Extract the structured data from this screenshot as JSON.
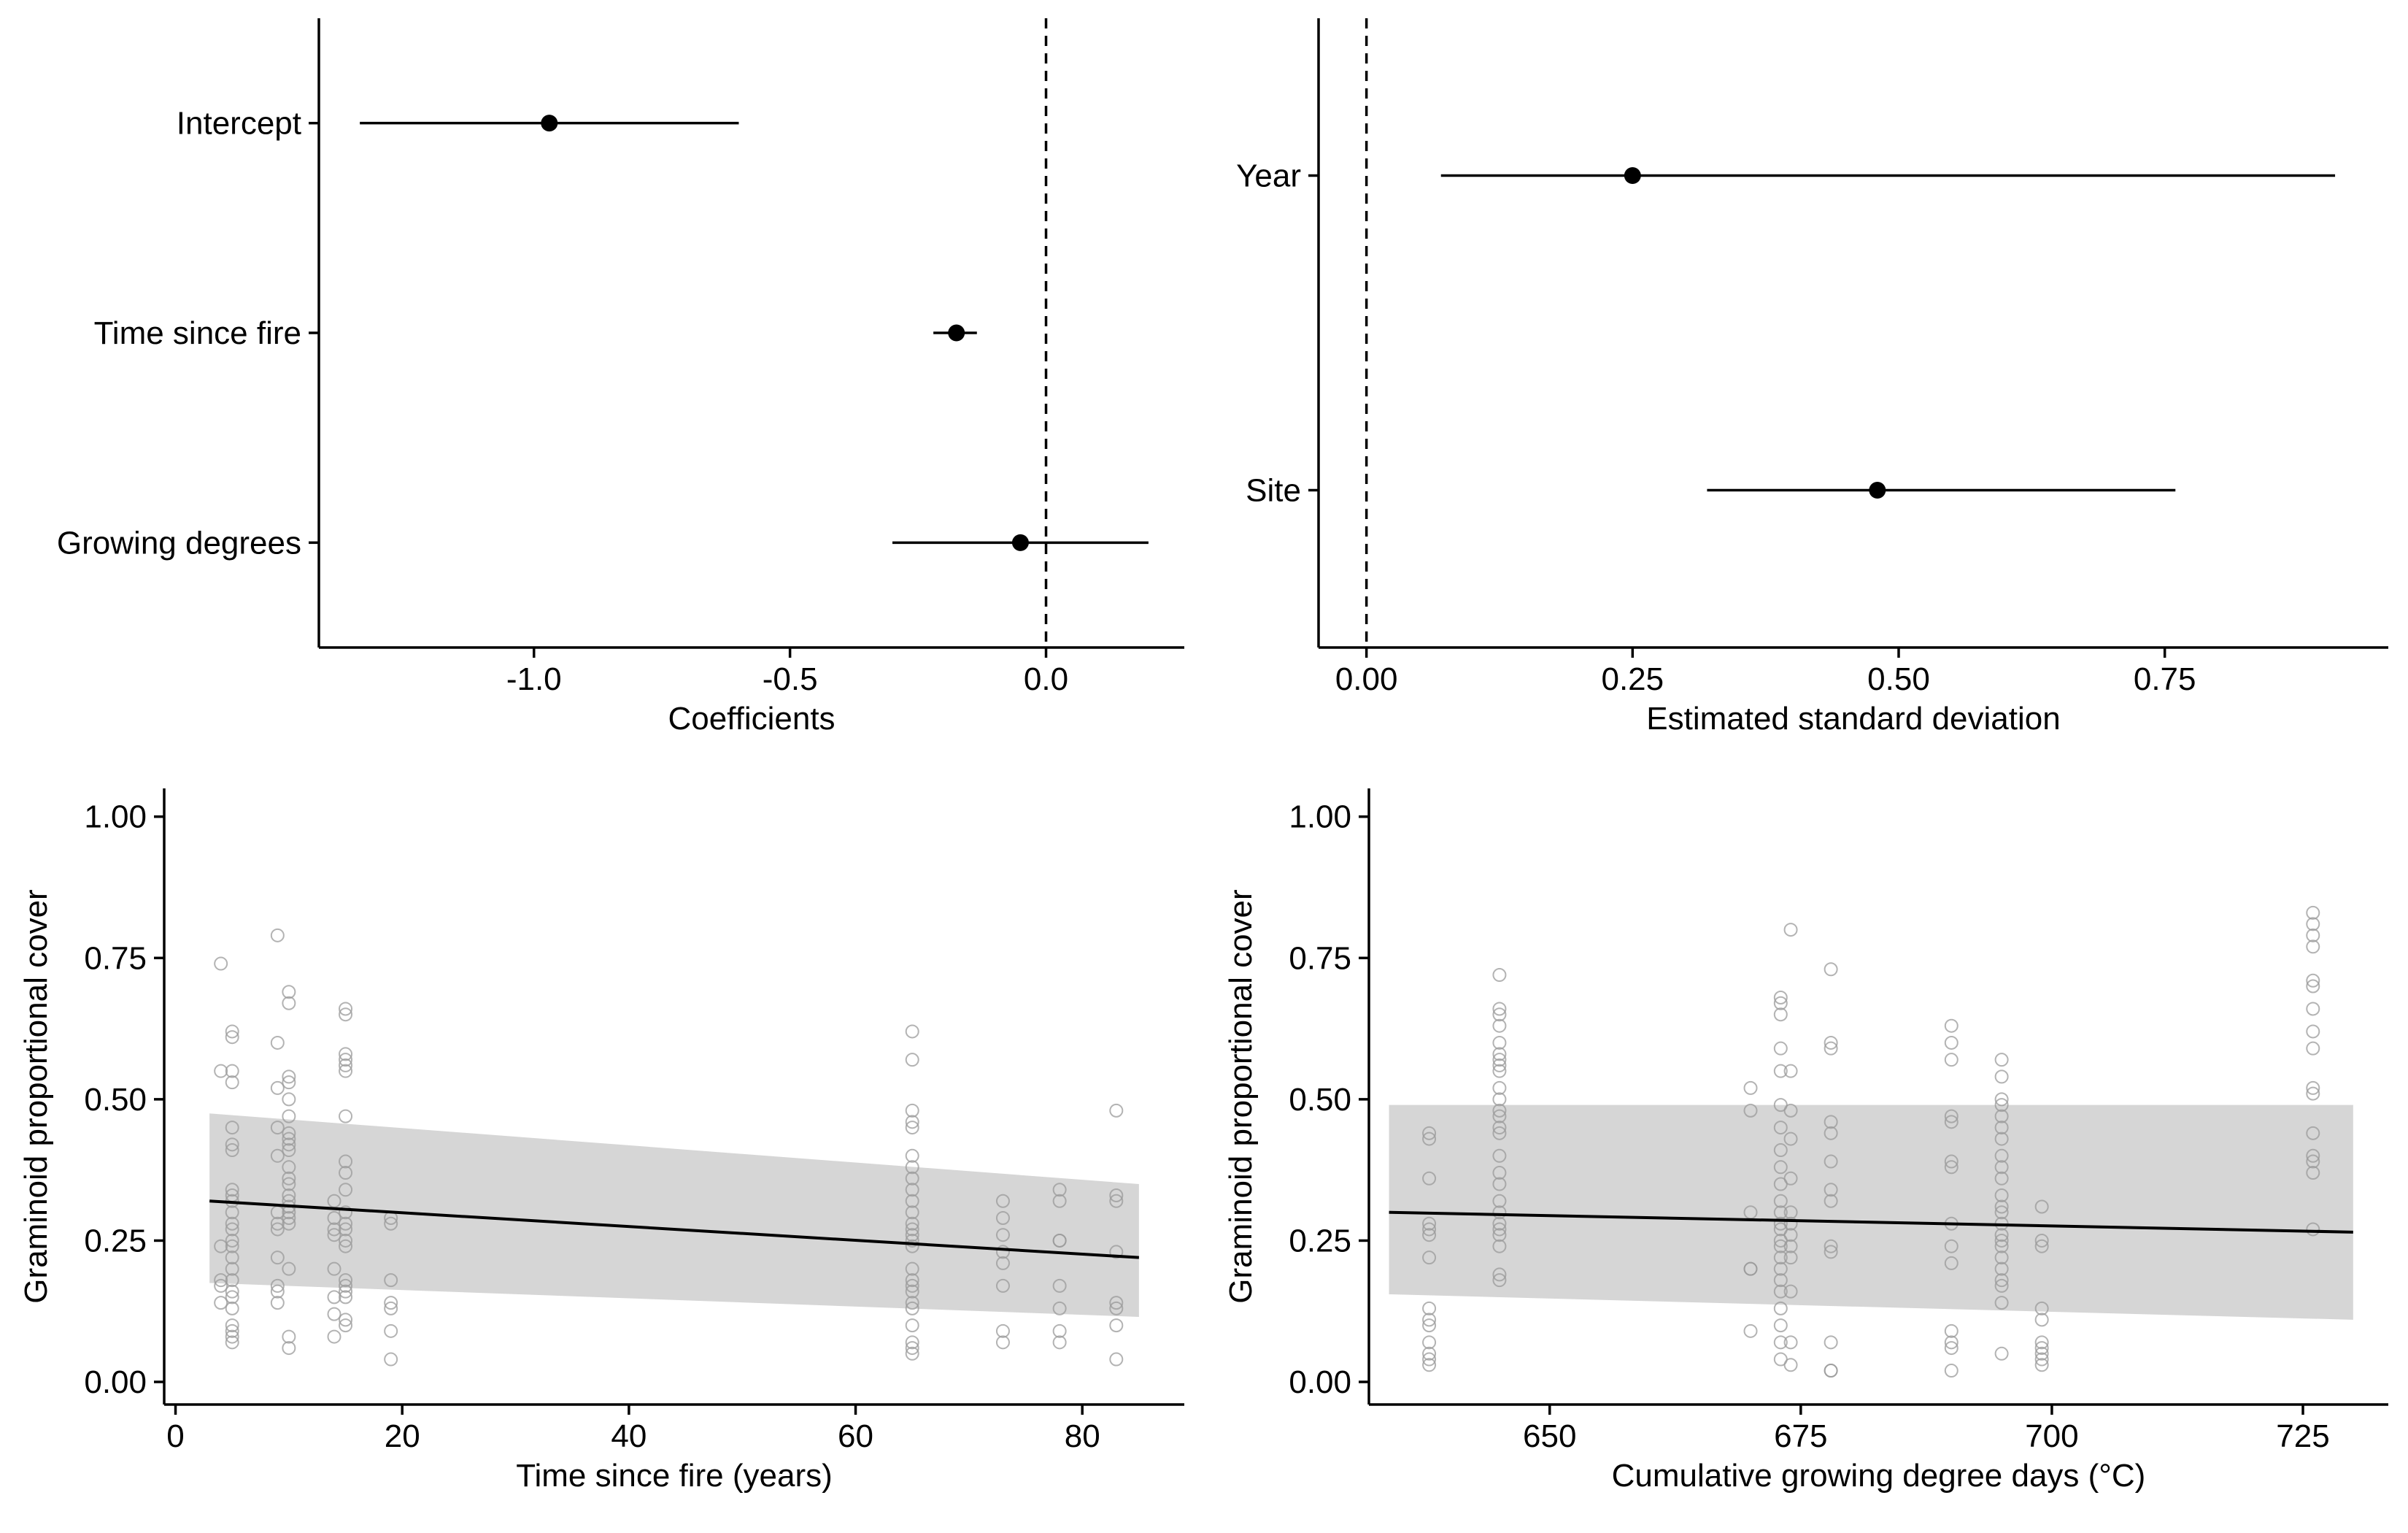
{
  "chart_data": [
    {
      "id": "coef",
      "type": "scatter",
      "subtype": "forest",
      "xlabel": "Coefficients",
      "ylabel": "",
      "xlim": [
        -1.42,
        0.27
      ],
      "xticks": [
        -1.0,
        -0.5,
        0.0
      ],
      "xtick_labels": [
        "-1.0",
        "-0.5",
        "0.0"
      ],
      "reference_line": 0.0,
      "categories": [
        "Intercept",
        "Time since fire",
        "Growing degrees"
      ],
      "estimates": [
        -0.97,
        -0.175,
        -0.05
      ],
      "lower": [
        -1.34,
        -0.22,
        -0.3
      ],
      "upper": [
        -0.6,
        -0.135,
        0.2
      ],
      "grid": false
    },
    {
      "id": "sd",
      "type": "scatter",
      "subtype": "forest",
      "xlabel": "Estimated standard deviation",
      "ylabel": "",
      "xlim": [
        -0.045,
        0.96
      ],
      "xticks": [
        0.0,
        0.25,
        0.5,
        0.75
      ],
      "xtick_labels": [
        "0.00",
        "0.25",
        "0.50",
        "0.75"
      ],
      "reference_line": 0.0,
      "categories": [
        "Year",
        "Site"
      ],
      "estimates": [
        0.25,
        0.48
      ],
      "lower": [
        0.07,
        0.32
      ],
      "upper": [
        0.91,
        0.76
      ],
      "grid": false
    },
    {
      "id": "tsf",
      "type": "scatter",
      "xlabel": "Time since fire (years)",
      "ylabel": "Graminoid proportional cover",
      "xlim": [
        -1.0,
        89.0
      ],
      "ylim": [
        -0.04,
        1.05
      ],
      "xticks": [
        0,
        20,
        40,
        60,
        80
      ],
      "xtick_labels": [
        "0",
        "20",
        "40",
        "60",
        "80"
      ],
      "yticks": [
        0,
        0.25,
        0.5,
        0.75,
        1.0
      ],
      "ytick_labels": [
        "0.00",
        "0.25",
        "0.50",
        "0.75",
        "1.00"
      ],
      "fit_line": {
        "x": [
          3,
          85
        ],
        "y": [
          0.32,
          0.22
        ]
      },
      "confidence_band": {
        "x": [
          3,
          85
        ],
        "lower": [
          0.175,
          0.115
        ],
        "upper": [
          0.475,
          0.35
        ]
      },
      "points": [
        {
          "x": 4,
          "y": [
            0.74,
            0.55,
            0.24,
            0.18,
            0.17,
            0.14
          ]
        },
        {
          "x": 5,
          "y": [
            0.62,
            0.61,
            0.55,
            0.53,
            0.45,
            0.42,
            0.41,
            0.34,
            0.33,
            0.32,
            0.3,
            0.28,
            0.27,
            0.25,
            0.24,
            0.22,
            0.2,
            0.18,
            0.16,
            0.15,
            0.13,
            0.1,
            0.09,
            0.08,
            0.07
          ]
        },
        {
          "x": 9,
          "y": [
            0.79,
            0.6,
            0.52,
            0.45,
            0.4,
            0.3,
            0.28,
            0.27,
            0.22,
            0.17,
            0.16,
            0.14
          ]
        },
        {
          "x": 10,
          "y": [
            0.69,
            0.67,
            0.54,
            0.53,
            0.5,
            0.47,
            0.44,
            0.43,
            0.42,
            0.41,
            0.38,
            0.36,
            0.35,
            0.33,
            0.32,
            0.31,
            0.3,
            0.29,
            0.28,
            0.2,
            0.08,
            0.06
          ]
        },
        {
          "x": 14,
          "y": [
            0.32,
            0.29,
            0.27,
            0.26,
            0.2,
            0.15,
            0.12,
            0.08
          ]
        },
        {
          "x": 15,
          "y": [
            0.66,
            0.65,
            0.58,
            0.57,
            0.56,
            0.55,
            0.47,
            0.39,
            0.37,
            0.34,
            0.3,
            0.28,
            0.27,
            0.25,
            0.24,
            0.18,
            0.17,
            0.16,
            0.15,
            0.11,
            0.1
          ]
        },
        {
          "x": 19,
          "y": [
            0.29,
            0.28,
            0.18,
            0.14,
            0.13,
            0.09,
            0.04
          ]
        },
        {
          "x": 65,
          "y": [
            0.62,
            0.57,
            0.48,
            0.46,
            0.45,
            0.4,
            0.38,
            0.36,
            0.34,
            0.32,
            0.3,
            0.28,
            0.27,
            0.26,
            0.25,
            0.24,
            0.2,
            0.18,
            0.17,
            0.16,
            0.14,
            0.13,
            0.1,
            0.07,
            0.06,
            0.05
          ]
        },
        {
          "x": 73,
          "y": [
            0.32,
            0.29,
            0.26,
            0.23,
            0.21,
            0.17,
            0.09,
            0.07
          ]
        },
        {
          "x": 78,
          "y": [
            0.34,
            0.32,
            0.25,
            0.25,
            0.17,
            0.13,
            0.09,
            0.07
          ]
        },
        {
          "x": 83,
          "y": [
            0.48,
            0.33,
            0.32,
            0.23,
            0.14,
            0.13,
            0.1,
            0.04
          ]
        }
      ],
      "grid": false
    },
    {
      "id": "gdd",
      "type": "scatter",
      "xlabel": "Cumulative growing degree days (°C)",
      "ylabel": "Graminoid proportional cover",
      "xlim": [
        632.0,
        733.5
      ],
      "ylim": [
        -0.04,
        1.05
      ],
      "xticks": [
        650,
        675,
        700,
        725
      ],
      "xtick_labels": [
        "650",
        "675",
        "700",
        "725"
      ],
      "yticks": [
        0,
        0.25,
        0.5,
        0.75,
        1.0
      ],
      "ytick_labels": [
        "0.00",
        "0.25",
        "0.50",
        "0.75",
        "1.00"
      ],
      "fit_line": {
        "x": [
          634,
          730
        ],
        "y": [
          0.3,
          0.265
        ]
      },
      "confidence_band": {
        "x": [
          634,
          730
        ],
        "lower": [
          0.155,
          0.11
        ],
        "upper": [
          0.49,
          0.49
        ]
      },
      "points": [
        {
          "x": 638,
          "y": [
            0.44,
            0.43,
            0.36,
            0.28,
            0.27,
            0.26,
            0.22,
            0.13,
            0.11,
            0.1,
            0.07,
            0.05,
            0.04,
            0.03
          ]
        },
        {
          "x": 645,
          "y": [
            0.72,
            0.66,
            0.65,
            0.63,
            0.6,
            0.58,
            0.57,
            0.56,
            0.55,
            0.52,
            0.5,
            0.48,
            0.47,
            0.45,
            0.44,
            0.4,
            0.37,
            0.35,
            0.32,
            0.3,
            0.28,
            0.27,
            0.26,
            0.24,
            0.19,
            0.18
          ]
        },
        {
          "x": 670,
          "y": [
            0.52,
            0.48,
            0.3,
            0.2,
            0.2,
            0.09
          ]
        },
        {
          "x": 673,
          "y": [
            0.68,
            0.67,
            0.65,
            0.59,
            0.55,
            0.49,
            0.45,
            0.41,
            0.38,
            0.35,
            0.32,
            0.3,
            0.28,
            0.27,
            0.25,
            0.24,
            0.22,
            0.2,
            0.18,
            0.16,
            0.13,
            0.1,
            0.07,
            0.04
          ]
        },
        {
          "x": 674,
          "y": [
            0.8,
            0.55,
            0.48,
            0.43,
            0.36,
            0.3,
            0.28,
            0.26,
            0.24,
            0.22,
            0.16,
            0.07,
            0.03
          ]
        },
        {
          "x": 678,
          "y": [
            0.73,
            0.6,
            0.59,
            0.46,
            0.44,
            0.39,
            0.34,
            0.32,
            0.24,
            0.23,
            0.07,
            0.02,
            0.02
          ]
        },
        {
          "x": 690,
          "y": [
            0.63,
            0.6,
            0.57,
            0.47,
            0.46,
            0.39,
            0.38,
            0.28,
            0.24,
            0.21,
            0.09,
            0.07,
            0.06,
            0.02
          ]
        },
        {
          "x": 695,
          "y": [
            0.57,
            0.54,
            0.5,
            0.49,
            0.47,
            0.45,
            0.43,
            0.4,
            0.38,
            0.36,
            0.33,
            0.31,
            0.3,
            0.28,
            0.26,
            0.25,
            0.24,
            0.22,
            0.2,
            0.18,
            0.17,
            0.14,
            0.05
          ]
        },
        {
          "x": 699,
          "y": [
            0.31,
            0.25,
            0.24,
            0.13,
            0.11,
            0.07,
            0.06,
            0.05,
            0.04,
            0.03
          ]
        },
        {
          "x": 726,
          "y": [
            0.83,
            0.81,
            0.79,
            0.77,
            0.71,
            0.7,
            0.66,
            0.62,
            0.59,
            0.52,
            0.51,
            0.44,
            0.4,
            0.39,
            0.37,
            0.27
          ]
        }
      ],
      "grid": false
    }
  ]
}
